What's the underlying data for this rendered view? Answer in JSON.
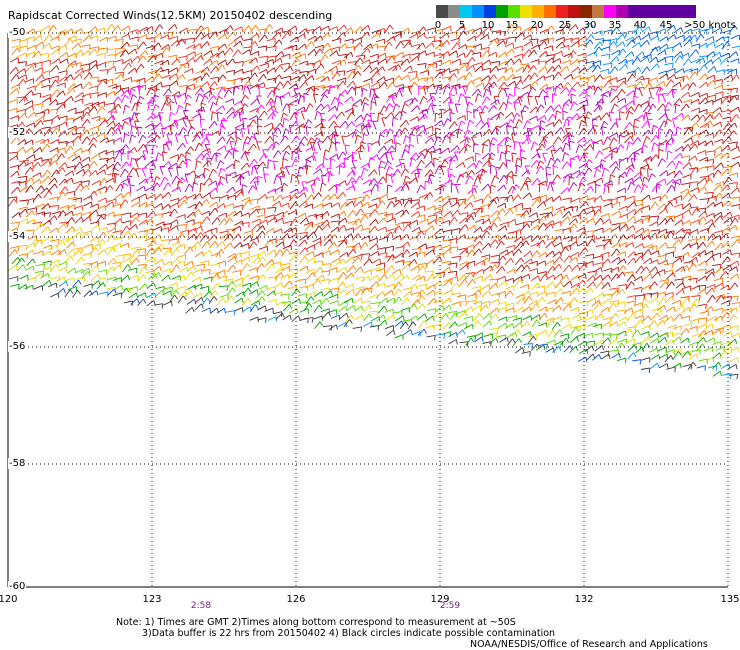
{
  "title": "Rapidscat Corrected Winds(12.5KM) 20150402 descending",
  "scale": {
    "labels": [
      "0",
      "5",
      "10",
      "15",
      "20",
      "25",
      "30",
      "35",
      "40",
      "45",
      ">50 knots"
    ],
    "colors": [
      "#4a4a4a",
      "#8c8c8c",
      "#00c8f0",
      "#0090ff",
      "#0040e0",
      "#00a000",
      "#58e000",
      "#f0e000",
      "#ffb000",
      "#ff7000",
      "#f02020",
      "#c01010",
      "#8b2500",
      "#c07840",
      "#ff00ff",
      "#b000b0",
      "#6000a0"
    ]
  },
  "latitudes": [
    "-50",
    "-52",
    "-54",
    "-56",
    "-58",
    "-60"
  ],
  "longitudes": [
    "120",
    "123",
    "126",
    "129",
    "132",
    "135"
  ],
  "times": [
    "2:58",
    "2:59"
  ],
  "notes": [
    "Note: 1) Times are GMT 2)Times along bottom correspond to measurement at ~50S",
    "3)Data buffer is 22 hrs from 20150402 4) Black circles indicate possible contamination",
    "NOAA/NESDIS/Office of Research and Applications"
  ]
}
